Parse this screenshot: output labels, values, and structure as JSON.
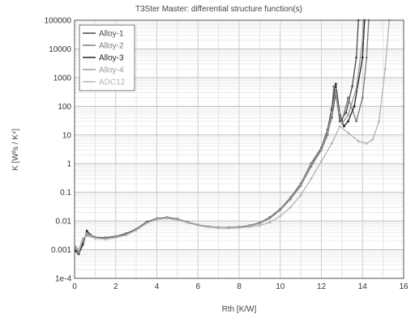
{
  "chart_data": {
    "type": "line",
    "title": "T3Ster Master: differential structure function(s)",
    "xlabel": "Rth  [K/W]",
    "ylabel": "K  [W²s / K⁴]",
    "xlim": [
      0,
      16
    ],
    "ylim": [
      0.0001,
      100000
    ],
    "yscale": "log",
    "x_ticks": [
      "0",
      "2",
      "4",
      "6",
      "8",
      "10",
      "12",
      "14",
      "16"
    ],
    "y_ticks": [
      "1e-4",
      "0.001",
      "0.01",
      "0.1",
      "1",
      "10",
      "100",
      "1000",
      "10000",
      "100000"
    ],
    "grid": true,
    "legend_position": "top-left",
    "series": [
      {
        "name": "Alloy-1",
        "color": "#4a4a4a",
        "points": [
          [
            0.05,
            0.001
          ],
          [
            0.2,
            0.0009
          ],
          [
            0.4,
            0.0018
          ],
          [
            0.6,
            0.004
          ],
          [
            0.8,
            0.003
          ],
          [
            1.0,
            0.0025
          ],
          [
            1.5,
            0.0025
          ],
          [
            2,
            0.0028
          ],
          [
            2.5,
            0.0035
          ],
          [
            3,
            0.005
          ],
          [
            3.5,
            0.009
          ],
          [
            4,
            0.012
          ],
          [
            4.5,
            0.013
          ],
          [
            5,
            0.0115
          ],
          [
            5.5,
            0.009
          ],
          [
            6,
            0.0072
          ],
          [
            6.5,
            0.0063
          ],
          [
            7,
            0.0059
          ],
          [
            7.5,
            0.0058
          ],
          [
            8,
            0.006
          ],
          [
            8.5,
            0.0068
          ],
          [
            9,
            0.0085
          ],
          [
            9.5,
            0.013
          ],
          [
            10,
            0.025
          ],
          [
            10.5,
            0.06
          ],
          [
            11,
            0.18
          ],
          [
            11.5,
            0.9
          ],
          [
            12,
            3
          ],
          [
            12.3,
            12
          ],
          [
            12.5,
            40
          ],
          [
            12.7,
            300
          ],
          [
            12.9,
            30
          ],
          [
            13.2,
            60
          ],
          [
            13.5,
            500
          ],
          [
            13.7,
            5000
          ],
          [
            13.8,
            100000
          ]
        ]
      },
      {
        "name": "Alloy-2",
        "color": "#7a7a7a",
        "points": [
          [
            0.05,
            0.0012
          ],
          [
            0.2,
            0.0008
          ],
          [
            0.4,
            0.0022
          ],
          [
            0.6,
            0.0035
          ],
          [
            0.8,
            0.003
          ],
          [
            1.0,
            0.0026
          ],
          [
            1.5,
            0.0024
          ],
          [
            2,
            0.0027
          ],
          [
            2.5,
            0.0033
          ],
          [
            3,
            0.0048
          ],
          [
            3.5,
            0.0085
          ],
          [
            4,
            0.0115
          ],
          [
            4.5,
            0.0125
          ],
          [
            5,
            0.011
          ],
          [
            5.5,
            0.0088
          ],
          [
            6,
            0.0071
          ],
          [
            6.5,
            0.0062
          ],
          [
            7,
            0.0058
          ],
          [
            7.5,
            0.0057
          ],
          [
            8,
            0.0059
          ],
          [
            8.5,
            0.0067
          ],
          [
            9,
            0.0083
          ],
          [
            9.5,
            0.0125
          ],
          [
            10,
            0.024
          ],
          [
            10.5,
            0.058
          ],
          [
            11,
            0.17
          ],
          [
            11.5,
            0.8
          ],
          [
            12,
            3
          ],
          [
            12.3,
            10
          ],
          [
            12.5,
            50
          ],
          [
            12.6,
            500
          ],
          [
            12.8,
            100
          ],
          [
            13.0,
            30
          ],
          [
            13.3,
            200
          ],
          [
            13.7,
            30
          ],
          [
            14.0,
            200
          ],
          [
            14.2,
            5000
          ],
          [
            14.3,
            100000
          ]
        ]
      },
      {
        "name": "Alloy-3",
        "color": "#222222",
        "points": [
          [
            0.05,
            0.0009
          ],
          [
            0.2,
            0.0007
          ],
          [
            0.4,
            0.0015
          ],
          [
            0.6,
            0.0045
          ],
          [
            0.8,
            0.0032
          ],
          [
            1.0,
            0.0027
          ],
          [
            1.5,
            0.0026
          ],
          [
            2,
            0.0029
          ],
          [
            2.5,
            0.0036
          ],
          [
            3,
            0.0052
          ],
          [
            3.5,
            0.0092
          ],
          [
            4,
            0.0122
          ],
          [
            4.5,
            0.0132
          ],
          [
            5,
            0.0117
          ],
          [
            5.5,
            0.0091
          ],
          [
            6,
            0.0073
          ],
          [
            6.5,
            0.0064
          ],
          [
            7,
            0.006
          ],
          [
            7.5,
            0.0059
          ],
          [
            8,
            0.0061
          ],
          [
            8.5,
            0.0069
          ],
          [
            9,
            0.0087
          ],
          [
            9.5,
            0.0135
          ],
          [
            10,
            0.026
          ],
          [
            10.5,
            0.065
          ],
          [
            11,
            0.2
          ],
          [
            11.5,
            1
          ],
          [
            12,
            3.5
          ],
          [
            12.3,
            15
          ],
          [
            12.5,
            80
          ],
          [
            12.7,
            600
          ],
          [
            12.9,
            50
          ],
          [
            13.1,
            20
          ],
          [
            13.3,
            30
          ],
          [
            13.6,
            100
          ],
          [
            14.0,
            5000
          ],
          [
            14.1,
            100000
          ]
        ]
      },
      {
        "name": "Alloy-4",
        "color": "#9a9a9a",
        "points": [
          [
            0.05,
            0.0011
          ],
          [
            0.2,
            0.0008
          ],
          [
            0.4,
            0.002
          ],
          [
            0.6,
            0.0038
          ],
          [
            0.8,
            0.0031
          ],
          [
            1.0,
            0.0026
          ],
          [
            1.5,
            0.0025
          ],
          [
            2,
            0.0028
          ],
          [
            2.5,
            0.0034
          ],
          [
            3,
            0.005
          ],
          [
            3.5,
            0.0088
          ],
          [
            4,
            0.0118
          ],
          [
            4.5,
            0.0128
          ],
          [
            5,
            0.0113
          ],
          [
            5.5,
            0.0089
          ],
          [
            6,
            0.0072
          ],
          [
            6.5,
            0.0063
          ],
          [
            7,
            0.0059
          ],
          [
            7.5,
            0.0058
          ],
          [
            8,
            0.006
          ],
          [
            8.5,
            0.0068
          ],
          [
            9,
            0.0085
          ],
          [
            9.5,
            0.013
          ],
          [
            10,
            0.025
          ],
          [
            10.5,
            0.062
          ],
          [
            11,
            0.19
          ],
          [
            11.5,
            0.95
          ],
          [
            12,
            3.2
          ],
          [
            12.3,
            13
          ],
          [
            12.5,
            60
          ],
          [
            12.7,
            400
          ],
          [
            12.85,
            60
          ],
          [
            13.0,
            25
          ],
          [
            13.3,
            50
          ],
          [
            13.7,
            400
          ],
          [
            14.0,
            20000
          ],
          [
            14.05,
            100000
          ]
        ]
      },
      {
        "name": "ADC12",
        "color": "#b3b3b3",
        "points": [
          [
            0.05,
            0.0013
          ],
          [
            0.2,
            0.001
          ],
          [
            0.4,
            0.0025
          ],
          [
            0.6,
            0.003
          ],
          [
            0.8,
            0.0028
          ],
          [
            1.0,
            0.0025
          ],
          [
            1.5,
            0.0023
          ],
          [
            2,
            0.0026
          ],
          [
            2.5,
            0.0032
          ],
          [
            3,
            0.0047
          ],
          [
            3.5,
            0.0083
          ],
          [
            4,
            0.0113
          ],
          [
            4.5,
            0.0123
          ],
          [
            5,
            0.0109
          ],
          [
            5.5,
            0.0087
          ],
          [
            6,
            0.007
          ],
          [
            6.5,
            0.0061
          ],
          [
            7,
            0.0057
          ],
          [
            7.5,
            0.0056
          ],
          [
            8,
            0.0058
          ],
          [
            8.5,
            0.0062
          ],
          [
            9,
            0.007
          ],
          [
            9.5,
            0.009
          ],
          [
            10,
            0.015
          ],
          [
            10.5,
            0.03
          ],
          [
            11,
            0.08
          ],
          [
            11.5,
            0.3
          ],
          [
            12,
            1.2
          ],
          [
            12.5,
            5
          ],
          [
            12.9,
            20
          ],
          [
            13.3,
            12
          ],
          [
            13.8,
            6
          ],
          [
            14.2,
            5
          ],
          [
            14.5,
            7
          ],
          [
            14.8,
            30
          ],
          [
            15.1,
            2000
          ],
          [
            15.3,
            100000
          ]
        ]
      }
    ]
  }
}
